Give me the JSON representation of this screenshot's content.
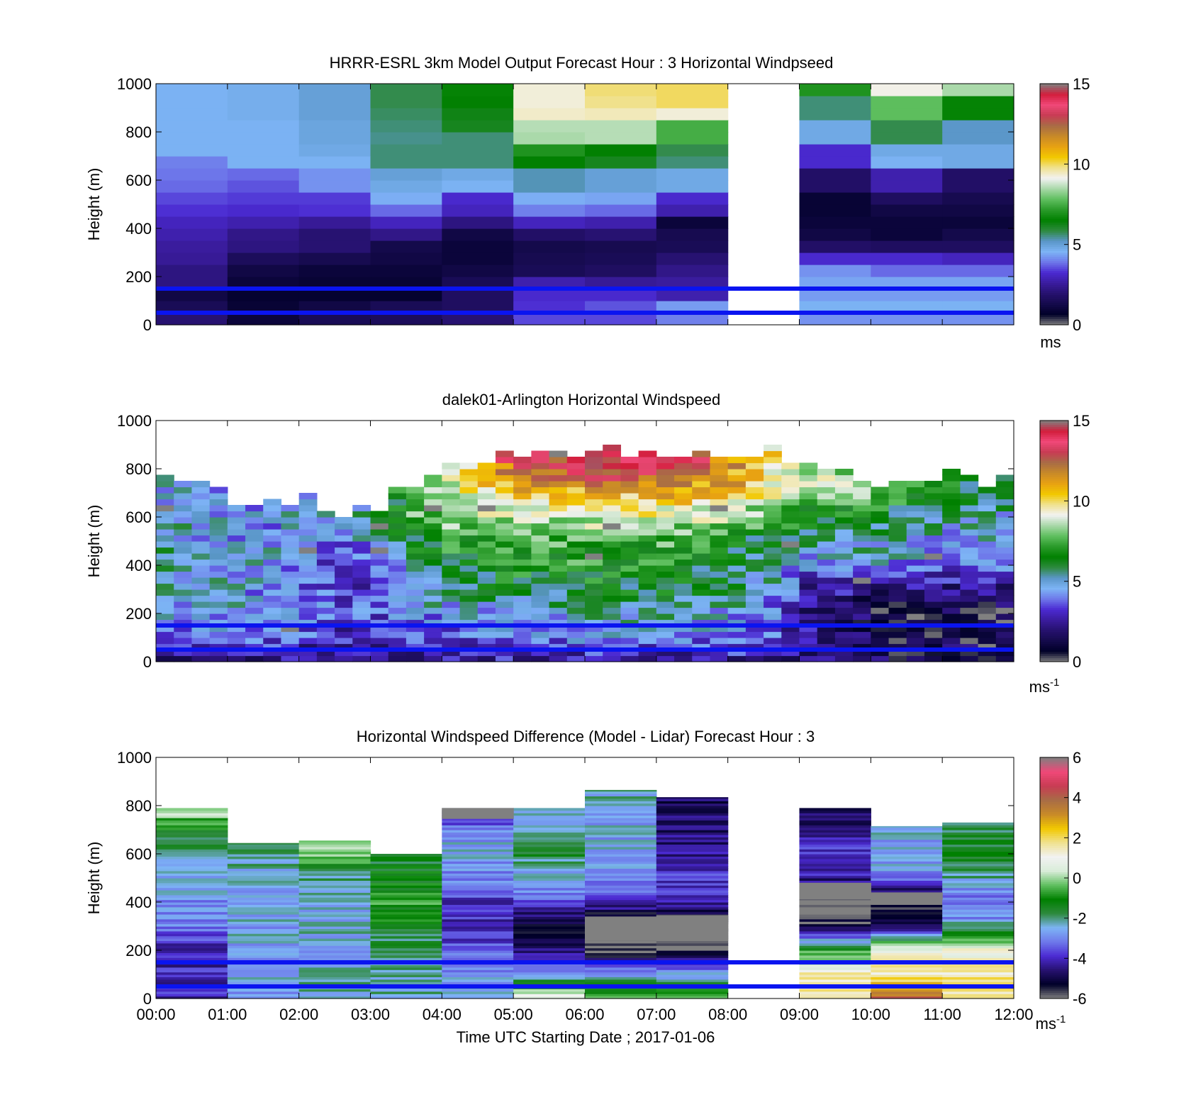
{
  "figure": {
    "xlabel": "Time UTC  Starting Date ; 2017-01-06",
    "x_tick_labels": [
      "00:00",
      "01:00",
      "02:00",
      "03:00",
      "04:00",
      "05:00",
      "06:00",
      "07:00",
      "08:00",
      "09:00",
      "10:00",
      "11:00",
      "12:00"
    ]
  },
  "chart_data": [
    {
      "type": "heatmap",
      "title": "HRRR-ESRL 3km Model Output   Forecast Hour : 3 Horizontal Windpseed",
      "ylabel": "Height (m)",
      "xlim": [
        0,
        12
      ],
      "ylim": [
        0,
        1000
      ],
      "yticks": [
        "0",
        "200",
        "400",
        "600",
        "800",
        "1000"
      ],
      "colorbar": {
        "ticks": [
          "0",
          "5",
          "10",
          "15"
        ],
        "range": [
          0,
          15
        ],
        "unit_label": "ms",
        "unit_sup": ""
      },
      "reference_lines_m": [
        50,
        150
      ],
      "missing_hours": [
        8
      ],
      "heights": [
        25,
        75,
        125,
        175,
        225,
        275,
        325,
        375,
        425,
        475,
        525,
        575,
        625,
        675,
        725,
        775,
        825,
        875,
        925,
        975
      ],
      "hours": [
        "00:00-01:00",
        "01:00-02:00",
        "02:00-03:00",
        "03:00-04:00",
        "04:00-05:00",
        "05:00-06:00",
        "06:00-07:00",
        "07:00-08:00",
        "08:00-09:00",
        "09:00-10:00",
        "10:00-11:00",
        "11:00-12:00"
      ],
      "values": [
        [
          2.0,
          1.0,
          1.5,
          1.6,
          2.0,
          3.5,
          3.5,
          4.0,
          null,
          4.2,
          4.2,
          4.2
        ],
        [
          1.5,
          0.9,
          1.2,
          1.5,
          1.7,
          3.3,
          3.6,
          4.3,
          null,
          4.6,
          4.6,
          4.6
        ],
        [
          1.2,
          0.8,
          0.8,
          0.8,
          1.7,
          3.2,
          3.2,
          2.8,
          null,
          4.3,
          4.3,
          4.3
        ],
        [
          2.2,
          1.0,
          0.9,
          0.9,
          1.5,
          2.8,
          2.5,
          2.6,
          null,
          4.4,
          4.4,
          4.4
        ],
        [
          2.2,
          1.2,
          1.0,
          1.0,
          1.2,
          1.5,
          1.7,
          2.3,
          null,
          4.2,
          3.8,
          3.8
        ],
        [
          2.5,
          1.6,
          1.4,
          1.2,
          1.0,
          1.4,
          1.5,
          2.0,
          null,
          3.2,
          3.2,
          3.0
        ],
        [
          2.6,
          2.2,
          2.0,
          1.3,
          1.0,
          1.3,
          1.4,
          1.5,
          null,
          1.8,
          1.7,
          1.7
        ],
        [
          2.8,
          2.3,
          2.0,
          2.3,
          1.2,
          1.8,
          2.0,
          1.4,
          null,
          1.2,
          1.0,
          1.3
        ],
        [
          3.0,
          2.8,
          2.5,
          3.0,
          2.2,
          3.0,
          2.8,
          1.0,
          null,
          1.0,
          1.0,
          1.0
        ],
        [
          3.3,
          3.2,
          3.3,
          3.8,
          3.0,
          4.0,
          3.8,
          2.8,
          null,
          0.9,
          1.2,
          1.2
        ],
        [
          3.5,
          3.4,
          3.4,
          4.5,
          3.2,
          4.5,
          4.4,
          3.2,
          null,
          0.9,
          1.7,
          1.4
        ],
        [
          3.8,
          3.6,
          4.2,
          4.8,
          4.6,
          5.3,
          5.0,
          4.8,
          null,
          1.8,
          2.8,
          1.8
        ],
        [
          3.9,
          3.8,
          4.2,
          5.0,
          4.8,
          5.3,
          5.0,
          4.8,
          null,
          1.8,
          2.8,
          1.8
        ],
        [
          4.0,
          4.6,
          4.6,
          5.6,
          5.6,
          6.5,
          6.2,
          5.6,
          null,
          3.2,
          4.6,
          4.8
        ],
        [
          4.6,
          4.6,
          4.8,
          5.6,
          5.6,
          7.0,
          6.5,
          5.8,
          null,
          3.2,
          4.8,
          4.8
        ],
        [
          4.6,
          4.6,
          4.9,
          5.5,
          5.6,
          8.5,
          8.6,
          7.5,
          null,
          4.8,
          5.8,
          5.2
        ],
        [
          4.6,
          4.6,
          4.9,
          5.6,
          6.2,
          8.6,
          8.6,
          7.5,
          null,
          4.8,
          5.8,
          5.2
        ],
        [
          4.6,
          4.7,
          5.0,
          5.7,
          6.3,
          9.4,
          9.5,
          9.3,
          null,
          5.6,
          7.8,
          6.6
        ],
        [
          4.6,
          4.7,
          5.0,
          5.8,
          6.5,
          9.3,
          9.8,
          10.0,
          null,
          5.6,
          7.8,
          6.6
        ],
        [
          4.6,
          4.7,
          5.0,
          5.8,
          6.6,
          9.3,
          9.9,
          10.0,
          null,
          7.0,
          9.2,
          8.5
        ]
      ]
    },
    {
      "type": "heatmap",
      "title": "dalek01-Arlington  Horizontal Windspeed",
      "ylabel": "Height (m)",
      "xlim": [
        0,
        12
      ],
      "ylim": [
        0,
        1000
      ],
      "yticks": [
        "0",
        "200",
        "400",
        "600",
        "800",
        "1000"
      ],
      "colorbar": {
        "ticks": [
          "0",
          "5",
          "10",
          "15"
        ],
        "range": [
          0,
          15
        ],
        "unit_label": "ms",
        "unit_sup": "-1"
      },
      "reference_lines_m": [
        50,
        150
      ],
      "time_resolution_min": 15,
      "height_resolution_m": 25,
      "profile_anchor_heights": [
        0,
        100,
        200,
        300,
        400,
        500,
        600,
        700,
        800,
        900
      ],
      "profiles": [
        {
          "t": 0.0,
          "v": [
            2.5,
            4.0,
            4.6,
            5.4,
            5.2,
            5.0,
            4.8,
            4.6,
            4.6,
            null
          ],
          "top": 790
        },
        {
          "t": 1.0,
          "v": [
            2.3,
            4.0,
            4.5,
            4.8,
            4.6,
            4.4,
            4.5,
            4.6,
            null,
            null
          ],
          "top": 660
        },
        {
          "t": 2.0,
          "v": [
            2.2,
            3.6,
            4.2,
            3.6,
            4.6,
            4.4,
            4.6,
            4.5,
            null,
            null
          ],
          "top": 660
        },
        {
          "t": 2.5,
          "v": [
            2.0,
            3.0,
            3.5,
            3.0,
            3.0,
            4.2,
            4.6,
            4.5,
            null,
            null
          ],
          "top": 620
        },
        {
          "t": 3.0,
          "v": [
            2.2,
            3.2,
            3.8,
            3.4,
            3.4,
            5.0,
            5.6,
            5.4,
            null,
            null
          ],
          "top": 620
        },
        {
          "t": 3.5,
          "v": [
            2.5,
            3.5,
            4.5,
            5.0,
            6.0,
            6.5,
            7.5,
            8.0,
            null,
            null
          ],
          "top": 740
        },
        {
          "t": 4.0,
          "v": [
            2.5,
            3.4,
            4.6,
            5.4,
            6.5,
            7.0,
            8.5,
            9.0,
            null,
            null
          ],
          "top": 790
        },
        {
          "t": 5.0,
          "v": [
            2.6,
            4.2,
            4.8,
            6.2,
            7.0,
            7.5,
            8.8,
            10.5,
            13.0,
            null
          ],
          "top": 850
        },
        {
          "t": 6.0,
          "v": [
            2.5,
            4.6,
            5.2,
            6.2,
            7.0,
            7.6,
            9.5,
            11.0,
            13.5,
            null
          ],
          "top": 860
        },
        {
          "t": 7.0,
          "v": [
            2.6,
            4.5,
            5.6,
            6.4,
            6.8,
            7.5,
            9.0,
            11.0,
            14.0,
            null
          ],
          "top": 860
        },
        {
          "t": 8.0,
          "v": [
            2.6,
            4.3,
            4.6,
            5.6,
            5.6,
            6.4,
            8.8,
            10.5,
            11.5,
            null
          ],
          "top": 820
        },
        {
          "t": 8.5,
          "v": [
            2.2,
            3.5,
            3.8,
            5.0,
            5.4,
            6.0,
            7.5,
            9.5,
            10.0,
            null
          ],
          "top": 860
        },
        {
          "t": 9.0,
          "v": [
            2.0,
            2.8,
            2.2,
            2.8,
            4.4,
            5.6,
            6.6,
            8.8,
            9.0,
            null
          ],
          "top": 780
        },
        {
          "t": 10.0,
          "v": [
            1.5,
            1.0,
            1.1,
            2.4,
            4.4,
            5.2,
            6.0,
            8.2,
            null,
            null
          ],
          "top": 740
        },
        {
          "t": 11.0,
          "v": [
            1.4,
            1.2,
            1.0,
            2.2,
            4.4,
            4.6,
            5.2,
            6.4,
            null,
            null
          ],
          "top": 760
        },
        {
          "t": 11.8,
          "v": [
            1.4,
            1.2,
            1.0,
            2.4,
            4.4,
            4.6,
            5.0,
            6.0,
            null,
            null
          ],
          "top": 720
        }
      ],
      "data_end_hour": 11.85
    },
    {
      "type": "heatmap",
      "title": "Horizontal Windspeed Difference (Model - Lidar) Forecast Hour : 3",
      "ylabel": "Height (m)",
      "xlim": [
        0,
        12
      ],
      "ylim": [
        0,
        1000
      ],
      "yticks": [
        "0",
        "200",
        "400",
        "600",
        "800",
        "1000"
      ],
      "colorbar": {
        "ticks": [
          "-6",
          "-4",
          "-2",
          "0",
          "2",
          "4",
          "6"
        ],
        "range": [
          -6,
          6
        ],
        "unit_label": "ms",
        "unit_sup": "-1"
      },
      "reference_lines_m": [
        50,
        150
      ],
      "missing_hours": [
        8
      ],
      "hours": [
        "00:00-01:00",
        "01:00-02:00",
        "02:00-03:00",
        "03:00-04:00",
        "04:00-05:00",
        "05:00-06:00",
        "06:00-07:00",
        "07:00-08:00",
        "08:00-09:00",
        "09:00-10:00",
        "10:00-11:00",
        "11:00-12:00"
      ],
      "column_tops_m": [
        790,
        645,
        655,
        600,
        790,
        790,
        865,
        835,
        null,
        790,
        715,
        730
      ],
      "profile_anchor_heights": [
        0,
        100,
        200,
        300,
        400,
        500,
        600,
        700,
        800
      ],
      "profiles": [
        [
          -4.0,
          -4.0,
          -4.3,
          -3.0,
          -2.8,
          -2.6,
          -2.2,
          -1.2,
          0.8
        ],
        [
          -3.0,
          -2.6,
          -2.6,
          -2.6,
          -2.6,
          -2.5,
          -1.8,
          null,
          null
        ],
        [
          -2.2,
          -2.4,
          -2.6,
          -2.4,
          -2.4,
          -2.0,
          -0.2,
          null,
          null
        ],
        [
          -2.2,
          -2.4,
          -2.0,
          -1.4,
          -0.8,
          -1.4,
          null,
          null,
          null
        ],
        [
          -2.6,
          -2.8,
          -3.6,
          -4.0,
          -3.8,
          -3.0,
          -2.6,
          -2.8,
          -6.0
        ],
        [
          0.8,
          -2.6,
          -4.8,
          -5.4,
          -3.6,
          -2.6,
          -1.6,
          -2.4,
          -2.8
        ],
        [
          -0.6,
          -2.6,
          -6.0,
          -6.0,
          -4.0,
          -2.6,
          -2.6,
          -2.6,
          -2.4
        ],
        [
          -0.8,
          -2.6,
          -6.0,
          -6.0,
          -4.0,
          -3.8,
          -4.4,
          -4.6,
          -4.8
        ],
        null,
        [
          2.0,
          1.4,
          -1.0,
          -5.5,
          -6.0,
          -4.2,
          -3.6,
          -4.8,
          -4.8
        ],
        [
          3.8,
          1.6,
          0.8,
          -5.0,
          -6.0,
          -3.0,
          -2.6,
          -2.6,
          null
        ],
        [
          1.8,
          1.6,
          0.9,
          -2.4,
          -3.6,
          -2.2,
          -1.6,
          -1.6,
          null
        ]
      ],
      "gray_bands": [
        {
          "hour": "04:00-05:00",
          "from_m": 745,
          "to_m": 790
        },
        {
          "hour": "06:00-07:00",
          "from_m": 240,
          "to_m": 340
        },
        {
          "hour": "07:00-08:00",
          "from_m": 240,
          "to_m": 345
        },
        {
          "hour": "09:00-10:00",
          "from_m": 410,
          "to_m": 480
        },
        {
          "hour": "10:00-11:00",
          "from_m": 410,
          "to_m": 440
        }
      ]
    }
  ],
  "colors": {
    "reference_line": "#0a14f0",
    "missing_value": "#808080",
    "speed_colormap": [
      "#808080",
      "#000028",
      "#140a4b",
      "#26116e",
      "#3a1c9e",
      "#4b2ad2",
      "#6e78ea",
      "#7db4f5",
      "#5a96c8",
      "#2e8a3e",
      "#008000",
      "#2a9a2a",
      "#5fbf5f",
      "#a8d8a8",
      "#f2f2f2",
      "#f0e290",
      "#f2c800",
      "#e8a212",
      "#c88a28",
      "#a86c46",
      "#c83c54",
      "#f04878",
      "#d21e3c",
      "#808080"
    ],
    "diff_colormap": [
      "#808080",
      "#000028",
      "#26116e",
      "#4b2ad2",
      "#6e78ea",
      "#7db4f5",
      "#2e8a3e",
      "#008000",
      "#5fbf5f",
      "#d8ecd8",
      "#f2f2f2",
      "#f0e290",
      "#f2c800",
      "#c88a28",
      "#a86c46",
      "#c83c54",
      "#f04878",
      "#808080"
    ]
  }
}
